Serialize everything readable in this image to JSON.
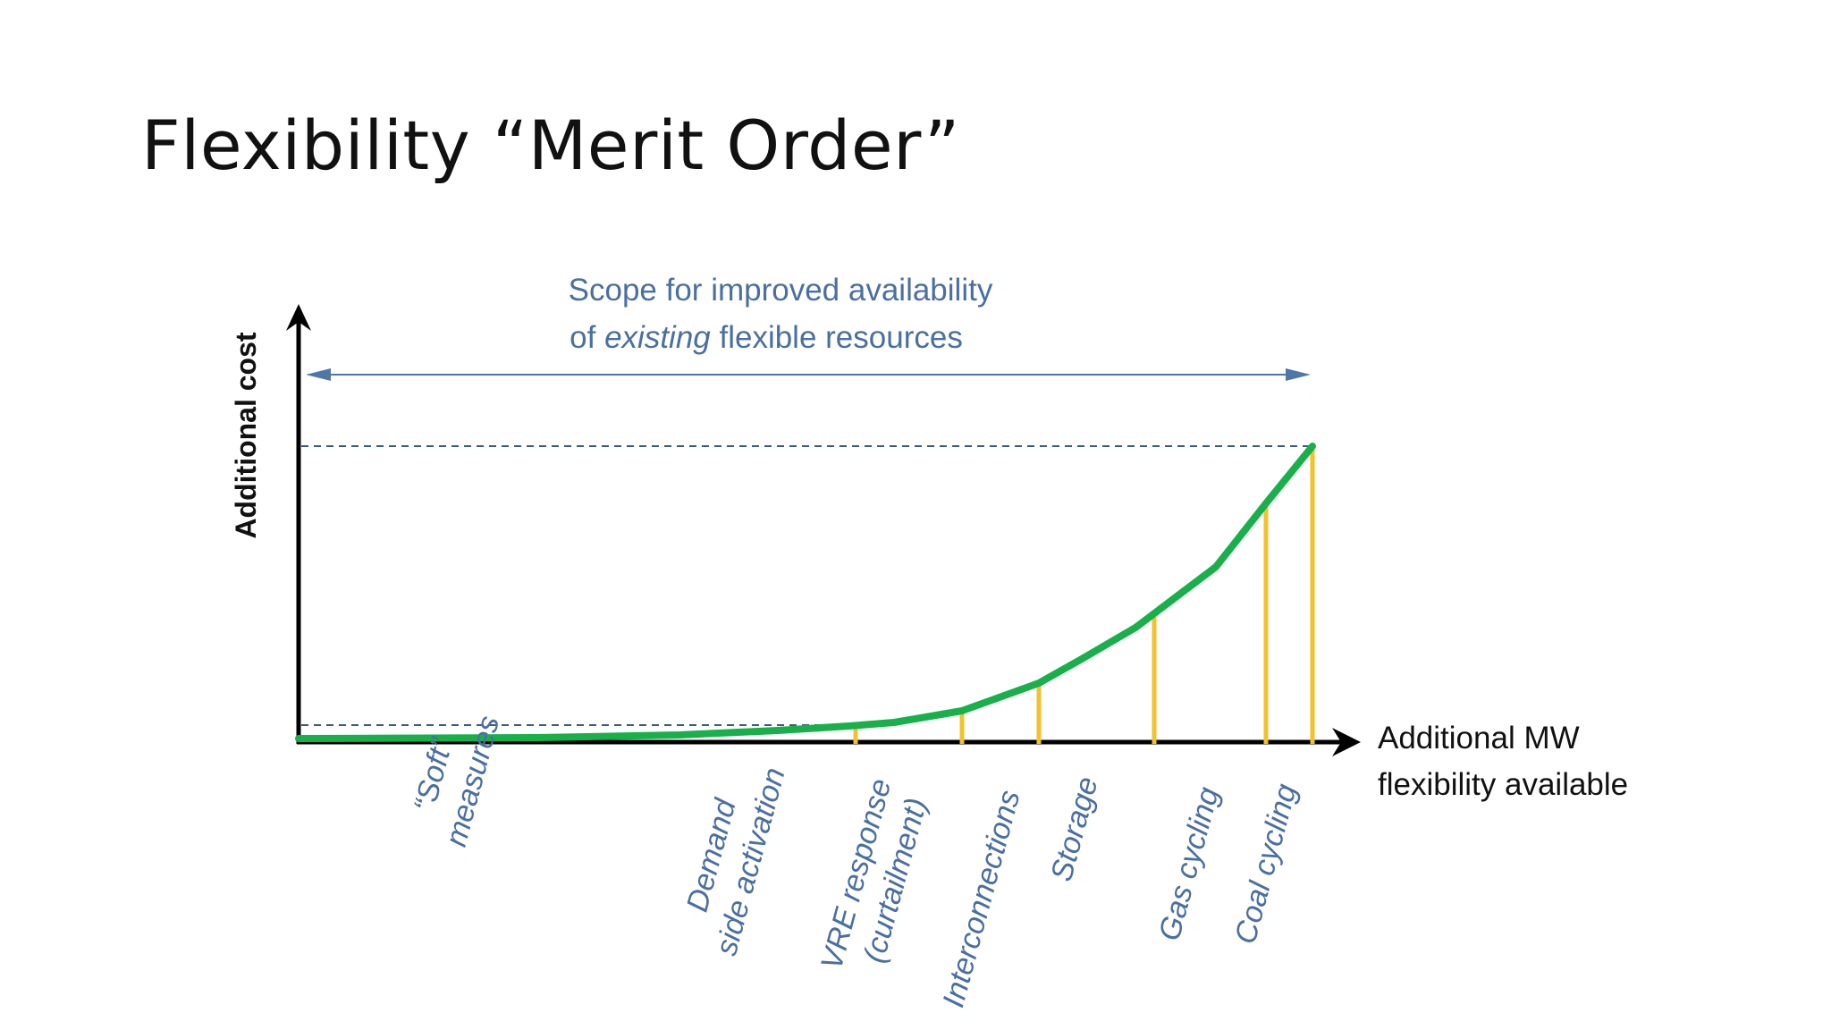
{
  "slide": {
    "title": "Flexibility “Merit Order”"
  },
  "diagram": {
    "y_axis_label": "Additional cost",
    "x_axis_label_line1": "Additional MW",
    "x_axis_label_line2": "flexibility available",
    "scope_line1": "Scope for improved availability",
    "scope_line2_prefix": "of ",
    "scope_line2_emphasis": "existing",
    "scope_line2_suffix": " flexible resources",
    "categories": [
      {
        "lines": [
          "“Soft”",
          "measures"
        ]
      },
      {
        "lines": [
          "Demand",
          "side activation"
        ]
      },
      {
        "lines": [
          "VRE response",
          "(curtailment)"
        ]
      },
      {
        "lines": [
          "Interconnections"
        ]
      },
      {
        "lines": [
          "Storage"
        ]
      },
      {
        "lines": [
          "Gas cycling"
        ]
      },
      {
        "lines": [
          "Coal cycling"
        ]
      }
    ],
    "colors": {
      "axis": "#000000",
      "curve": "#19b04b",
      "markers": "#f2c12e",
      "scope_text": "#4a6fa0",
      "scope_arrow": "#4f76a8",
      "dashed": "#3a5a80",
      "category_text": "#4a6fa0"
    }
  }
}
